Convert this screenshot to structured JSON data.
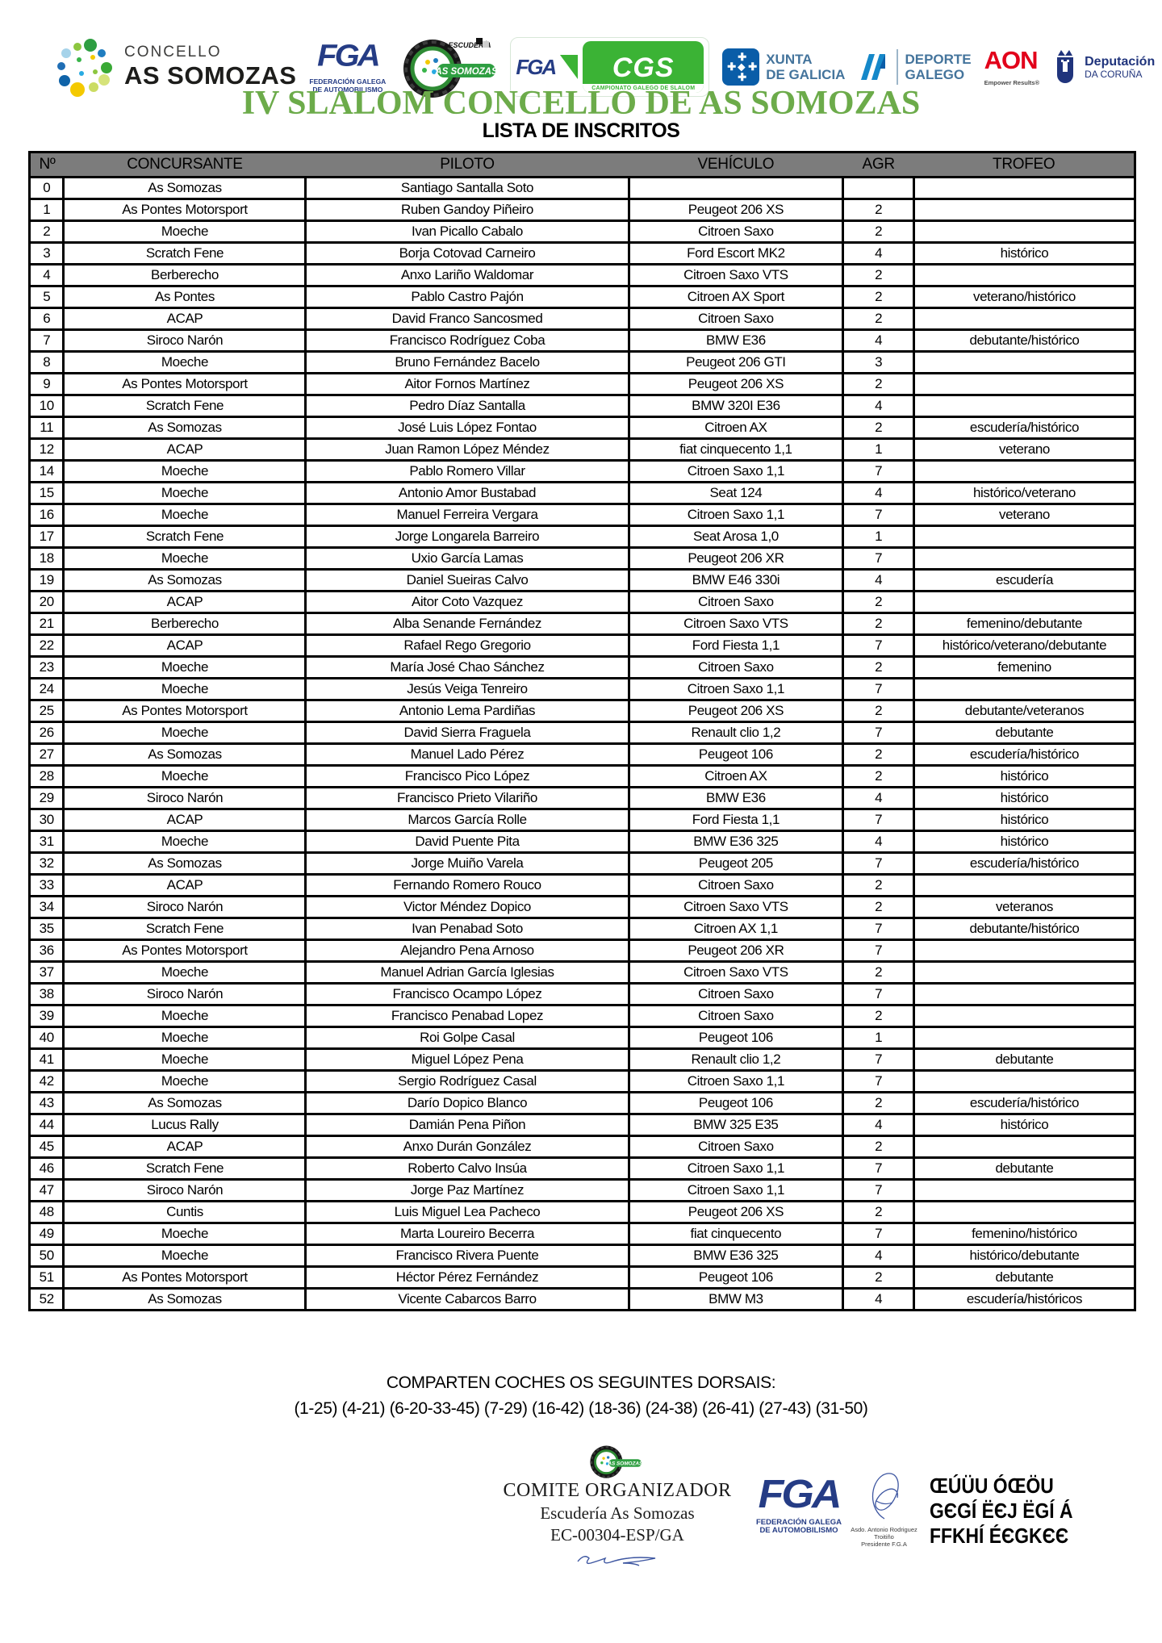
{
  "page_title": "IV SLALOM CONCELLO DE AS SOMOZAS",
  "subtitle": "LISTA DE INSCRITOS",
  "logos": {
    "concello": {
      "line1": "CONCELLO",
      "line2": "AS SOMOZAS"
    },
    "fga": {
      "acronym": "FGA",
      "caption1": "FEDERACIÓN GALEGA",
      "caption2": "DE AUTOMOBILISMO"
    },
    "escuderia": {
      "top": "ESCUDERÍA",
      "banner": "AS SOMOZAS"
    },
    "cgs": {
      "fga_acronym": "FGA",
      "acronym": "CGS",
      "caption": "CAMPIONATO GALEGO DE SLALOM"
    },
    "xunta": {
      "line1": "XUNTA",
      "line2": "DE GALICIA"
    },
    "deporte": {
      "line1": "DEPORTE",
      "line2": "GALEGO"
    },
    "aon": {
      "name": "AON",
      "tagline": "Empower Results®"
    },
    "deputacion": {
      "line1": "Deputación",
      "line2": "DA CORUÑA"
    }
  },
  "table": {
    "columns": [
      "Nº",
      "CONCURSANTE",
      "PILOTO",
      "VEHÍCULO",
      "AGR",
      "TROFEO"
    ],
    "column_keys": [
      "num",
      "concursante",
      "piloto",
      "vehiculo",
      "agr",
      "trofeo"
    ],
    "rows": [
      [
        "0",
        "As Somozas",
        "Santiago Santalla Soto",
        "",
        "",
        ""
      ],
      [
        "1",
        "As Pontes Motorsport",
        "Ruben Gandoy Piñeiro",
        "Peugeot 206 XS",
        "2",
        ""
      ],
      [
        "2",
        "Moeche",
        "Ivan Picallo Cabalo",
        "Citroen Saxo",
        "2",
        ""
      ],
      [
        "3",
        "Scratch Fene",
        "Borja Cotovad Carneiro",
        "Ford Escort MK2",
        "4",
        "histórico"
      ],
      [
        "4",
        "Berberecho",
        "Anxo Lariño Waldomar",
        "Citroen Saxo VTS",
        "2",
        ""
      ],
      [
        "5",
        "As Pontes",
        "Pablo Castro Pajón",
        "Citroen AX Sport",
        "2",
        "veterano/histórico"
      ],
      [
        "6",
        "ACAP",
        "David Franco Sancosmed",
        "Citroen Saxo",
        "2",
        ""
      ],
      [
        "7",
        "Siroco Narón",
        "Francisco Rodríguez Coba",
        "BMW E36",
        "4",
        "debutante/histórico"
      ],
      [
        "8",
        "Moeche",
        "Bruno Fernández Bacelo",
        "Peugeot 206 GTI",
        "3",
        ""
      ],
      [
        "9",
        "As Pontes Motorsport",
        "Aitor Fornos Martínez",
        "Peugeot 206 XS",
        "2",
        ""
      ],
      [
        "10",
        "Scratch Fene",
        "Pedro Díaz Santalla",
        "BMW 320I E36",
        "4",
        ""
      ],
      [
        "11",
        "As Somozas",
        "José Luis López Fontao",
        "Citroen AX",
        "2",
        "escudería/histórico"
      ],
      [
        "12",
        "ACAP",
        "Juan Ramon López Méndez",
        "fiat cinquecento 1,1",
        "1",
        "veterano"
      ],
      [
        "14",
        "Moeche",
        "Pablo Romero Villar",
        "Citroen Saxo 1,1",
        "7",
        ""
      ],
      [
        "15",
        "Moeche",
        "Antonio Amor Bustabad",
        "Seat 124",
        "4",
        "histórico/veterano"
      ],
      [
        "16",
        "Moeche",
        "Manuel Ferreira Vergara",
        "Citroen Saxo 1,1",
        "7",
        "veterano"
      ],
      [
        "17",
        "Scratch Fene",
        "Jorge Longarela Barreiro",
        "Seat Arosa 1,0",
        "1",
        ""
      ],
      [
        "18",
        "Moeche",
        "Uxio García Lamas",
        "Peugeot 206 XR",
        "7",
        ""
      ],
      [
        "19",
        "As Somozas",
        "Daniel Sueiras Calvo",
        "BMW E46 330i",
        "4",
        "escudería"
      ],
      [
        "20",
        "ACAP",
        "Aitor Coto Vazquez",
        "Citroen Saxo",
        "2",
        ""
      ],
      [
        "21",
        "Berberecho",
        "Alba Senande Fernández",
        "Citroen Saxo VTS",
        "2",
        "femenino/debutante"
      ],
      [
        "22",
        "ACAP",
        "Rafael Rego Gregorio",
        "Ford Fiesta 1,1",
        "7",
        "histórico/veterano/debutante"
      ],
      [
        "23",
        "Moeche",
        "María José Chao Sánchez",
        "Citroen Saxo",
        "2",
        "femenino"
      ],
      [
        "24",
        "Moeche",
        "Jesús Veiga Tenreiro",
        "Citroen Saxo 1,1",
        "7",
        ""
      ],
      [
        "25",
        "As Pontes Motorsport",
        "Antonio Lema Pardiñas",
        "Peugeot 206 XS",
        "2",
        "debutante/veteranos"
      ],
      [
        "26",
        "Moeche",
        "David Sierra Fraguela",
        "Renault clio 1,2",
        "7",
        "debutante"
      ],
      [
        "27",
        "As Somozas",
        "Manuel Lado Pérez",
        "Peugeot 106",
        "2",
        "escudería/histórico"
      ],
      [
        "28",
        "Moeche",
        "Francisco Pico López",
        "Citroen AX",
        "2",
        "histórico"
      ],
      [
        "29",
        "Siroco Narón",
        "Francisco Prieto Vilariño",
        "BMW E36",
        "4",
        "histórico"
      ],
      [
        "30",
        "ACAP",
        "Marcos García Rolle",
        "Ford Fiesta 1,1",
        "7",
        "histórico"
      ],
      [
        "31",
        "Moeche",
        "David Puente Pita",
        "BMW E36 325",
        "4",
        "histórico"
      ],
      [
        "32",
        "As Somozas",
        "Jorge Muiño Varela",
        "Peugeot 205",
        "7",
        "escudería/histórico"
      ],
      [
        "33",
        "ACAP",
        "Fernando Romero Rouco",
        "Citroen Saxo",
        "2",
        ""
      ],
      [
        "34",
        "Siroco Narón",
        "Victor Méndez Dopico",
        "Citroen Saxo VTS",
        "2",
        "veteranos"
      ],
      [
        "35",
        "Scratch Fene",
        "Ivan Penabad Soto",
        "Citroen AX 1,1",
        "7",
        "debutante/histórico"
      ],
      [
        "36",
        "As Pontes Motorsport",
        "Alejandro Pena Arnoso",
        "Peugeot 206 XR",
        "7",
        ""
      ],
      [
        "37",
        "Moeche",
        "Manuel Adrian García Iglesias",
        "Citroen Saxo VTS",
        "2",
        ""
      ],
      [
        "38",
        "Siroco Narón",
        "Francisco Ocampo López",
        "Citroen Saxo",
        "7",
        ""
      ],
      [
        "39",
        "Moeche",
        "Francisco Penabad Lopez",
        "Citroen Saxo",
        "2",
        ""
      ],
      [
        "40",
        "Moeche",
        "Roi Golpe Casal",
        "Peugeot 106",
        "1",
        ""
      ],
      [
        "41",
        "Moeche",
        "Miguel López Pena",
        "Renault clio 1,2",
        "7",
        "debutante"
      ],
      [
        "42",
        "Moeche",
        "Sergio Rodríguez Casal",
        "Citroen Saxo 1,1",
        "7",
        ""
      ],
      [
        "43",
        "As Somozas",
        "Darío Dopico Blanco",
        "Peugeot 106",
        "2",
        "escudería/histórico"
      ],
      [
        "44",
        "Lucus Rally",
        "Damián Pena Piñon",
        "BMW 325 E35",
        "4",
        "histórico"
      ],
      [
        "45",
        "ACAP",
        "Anxo Durán González",
        "Citroen Saxo",
        "2",
        ""
      ],
      [
        "46",
        "Scratch Fene",
        "Roberto Calvo Insúa",
        "Citroen Saxo 1,1",
        "7",
        "debutante"
      ],
      [
        "47",
        "Siroco Narón",
        "Jorge Paz Martínez",
        "Citroen Saxo 1,1",
        "7",
        ""
      ],
      [
        "48",
        "Cuntis",
        "Luis Miguel Lea Pacheco",
        "Peugeot 206 XS",
        "2",
        ""
      ],
      [
        "49",
        "Moeche",
        "Marta Loureiro Becerra",
        "fiat cinquecento",
        "7",
        "femenino/histórico"
      ],
      [
        "50",
        "Moeche",
        "Francisco Rivera Puente",
        "BMW E36 325",
        "4",
        "histórico/debutante"
      ],
      [
        "51",
        "As Pontes Motorsport",
        "Héctor Pérez Fernández",
        "Peugeot 106",
        "2",
        "debutante"
      ],
      [
        "52",
        "As Somozas",
        "Vicente Cabarcos Barro",
        "BMW M3",
        "4",
        "escudería/históricos"
      ]
    ]
  },
  "sharing": {
    "heading": "COMPARTEN COCHES OS SEGUINTES DORSAIS:",
    "pairs": "(1-25) (4-21) (6-20-33-45) (7-29) (16-42) (18-36) (24-38) (26-41) (27-43) (31-50)"
  },
  "committee": {
    "line1": "COMITE ORGANIZADOR",
    "line2": "Escudería As Somozas",
    "line3": "EC-00304-ESP/GA"
  },
  "footer_fga": {
    "acronym": "FGA",
    "caption1": "FEDERACIÓN GALEGA",
    "caption2": "DE AUTOMOBILISMO"
  },
  "president": {
    "line1": "Asdo. Antonio Rodriguez Troitiño",
    "line2": "Presidente F.G.A"
  },
  "garbled": {
    "line1": "ŒÚÜU ÓŒÖU",
    "line2": "GЄGÍ ËЄJ ËGÍ Á",
    "line3": "FFKHÍ ÉЄGKЄЄ"
  },
  "colors": {
    "title_green": "#6cab4a",
    "header_gray": "#7c7c7c",
    "fga_navy": "#253c85",
    "cgs_green": "#3bb335",
    "aon_red": "#e2001a",
    "xunta_blue": "#0a5da8",
    "deporte_blue": "#1588c9",
    "deputacion_navy": "#20347c"
  }
}
